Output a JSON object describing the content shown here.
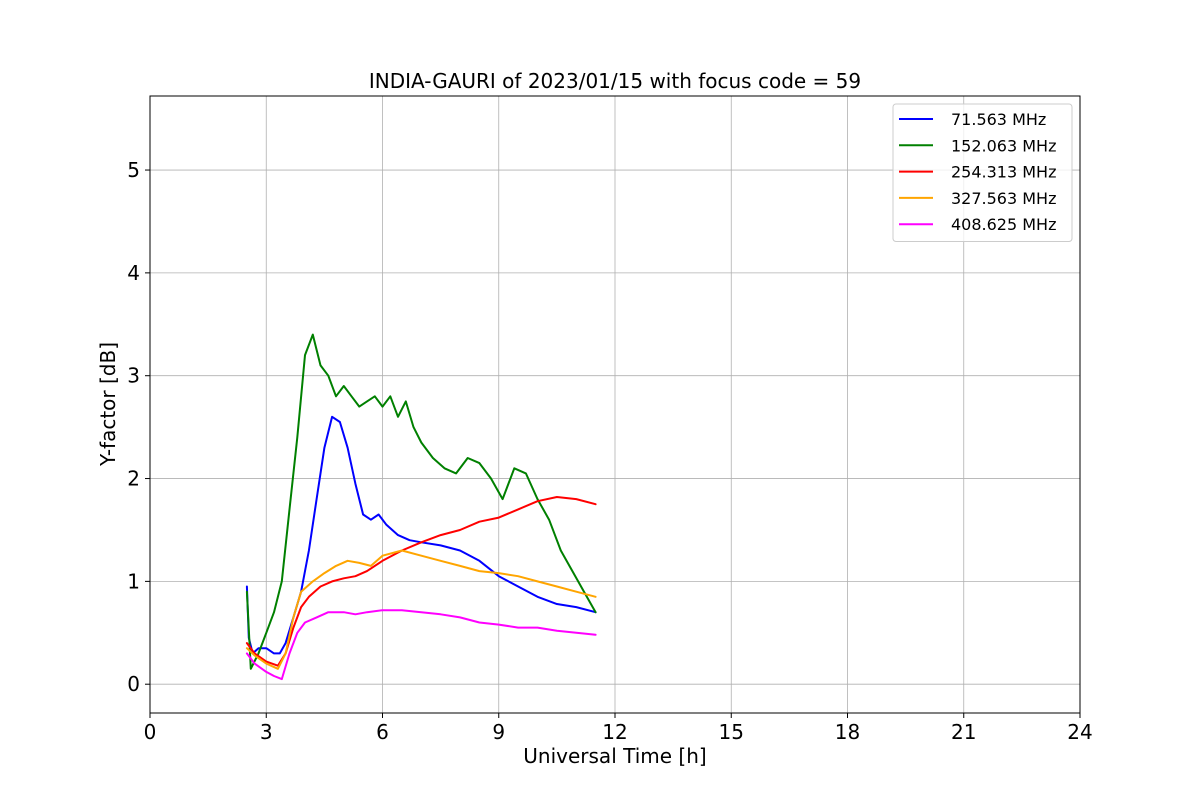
{
  "chart_data": {
    "type": "line",
    "title": "INDIA-GAURI of 2023/01/15 with focus code = 59",
    "xlabel": "Universal Time [h]",
    "ylabel": "Y-factor [dB]",
    "xlim": [
      0,
      24
    ],
    "ylim": [
      -0.28,
      5.72
    ],
    "xticks": [
      0,
      3,
      6,
      9,
      12,
      15,
      18,
      21,
      24
    ],
    "yticks": [
      0,
      1,
      2,
      3,
      4,
      5
    ],
    "grid": true,
    "legend_position": "top-right",
    "series": [
      {
        "name": " 71.563 MHz",
        "color": "#0000ff",
        "x": [
          2.5,
          2.55,
          2.65,
          2.8,
          3.0,
          3.2,
          3.35,
          3.5,
          3.7,
          3.9,
          4.1,
          4.3,
          4.5,
          4.7,
          4.9,
          5.1,
          5.3,
          5.5,
          5.7,
          5.9,
          6.1,
          6.4,
          6.7,
          7.0,
          7.5,
          8.0,
          8.5,
          9.0,
          9.5,
          10.0,
          10.5,
          11.0,
          11.5
        ],
        "y": [
          0.95,
          0.45,
          0.3,
          0.35,
          0.35,
          0.3,
          0.3,
          0.4,
          0.65,
          0.9,
          1.3,
          1.8,
          2.3,
          2.6,
          2.55,
          2.3,
          1.95,
          1.65,
          1.6,
          1.65,
          1.55,
          1.45,
          1.4,
          1.38,
          1.35,
          1.3,
          1.2,
          1.05,
          0.95,
          0.85,
          0.78,
          0.75,
          0.7
        ]
      },
      {
        "name": "152.063 MHz",
        "color": "#008000",
        "x": [
          2.5,
          2.6,
          2.8,
          3.0,
          3.2,
          3.4,
          3.6,
          3.8,
          4.0,
          4.2,
          4.4,
          4.6,
          4.8,
          5.0,
          5.2,
          5.4,
          5.6,
          5.8,
          6.0,
          6.2,
          6.4,
          6.6,
          6.8,
          7.0,
          7.3,
          7.6,
          7.9,
          8.2,
          8.5,
          8.8,
          9.1,
          9.4,
          9.7,
          10.0,
          10.3,
          10.6,
          10.9,
          11.2,
          11.5
        ],
        "y": [
          0.9,
          0.15,
          0.3,
          0.5,
          0.7,
          1.0,
          1.7,
          2.4,
          3.2,
          3.4,
          3.1,
          3.0,
          2.8,
          2.9,
          2.8,
          2.7,
          2.75,
          2.8,
          2.7,
          2.8,
          2.6,
          2.75,
          2.5,
          2.35,
          2.2,
          2.1,
          2.05,
          2.2,
          2.15,
          2.0,
          1.8,
          2.1,
          2.05,
          1.8,
          1.6,
          1.3,
          1.1,
          0.9,
          0.7
        ]
      },
      {
        "name": "254.313 MHz",
        "color": "#ff0000",
        "x": [
          2.5,
          2.7,
          3.0,
          3.3,
          3.5,
          3.7,
          3.9,
          4.1,
          4.4,
          4.7,
          5.0,
          5.3,
          5.6,
          6.0,
          6.5,
          7.0,
          7.5,
          8.0,
          8.5,
          9.0,
          9.5,
          10.0,
          10.5,
          11.0,
          11.5
        ],
        "y": [
          0.4,
          0.3,
          0.22,
          0.18,
          0.3,
          0.55,
          0.75,
          0.85,
          0.95,
          1.0,
          1.03,
          1.05,
          1.1,
          1.2,
          1.3,
          1.38,
          1.45,
          1.5,
          1.58,
          1.62,
          1.7,
          1.78,
          1.82,
          1.8,
          1.75
        ]
      },
      {
        "name": "327.563 MHz",
        "color": "#ffa500",
        "x": [
          2.5,
          2.7,
          3.0,
          3.3,
          3.5,
          3.7,
          3.9,
          4.2,
          4.5,
          4.8,
          5.1,
          5.4,
          5.7,
          6.0,
          6.5,
          7.0,
          7.5,
          8.0,
          8.5,
          9.0,
          9.5,
          10.0,
          10.5,
          11.0,
          11.5
        ],
        "y": [
          0.35,
          0.28,
          0.2,
          0.15,
          0.3,
          0.65,
          0.9,
          1.0,
          1.08,
          1.15,
          1.2,
          1.18,
          1.15,
          1.25,
          1.3,
          1.25,
          1.2,
          1.15,
          1.1,
          1.08,
          1.05,
          1.0,
          0.95,
          0.9,
          0.85
        ]
      },
      {
        "name": "408.625 MHz",
        "color": "#ff00ff",
        "x": [
          2.5,
          2.7,
          3.0,
          3.2,
          3.4,
          3.6,
          3.8,
          4.0,
          4.3,
          4.6,
          5.0,
          5.3,
          5.6,
          6.0,
          6.5,
          7.0,
          7.5,
          8.0,
          8.5,
          9.0,
          9.5,
          10.0,
          10.5,
          11.0,
          11.5
        ],
        "y": [
          0.3,
          0.2,
          0.12,
          0.08,
          0.05,
          0.3,
          0.5,
          0.6,
          0.65,
          0.7,
          0.7,
          0.68,
          0.7,
          0.72,
          0.72,
          0.7,
          0.68,
          0.65,
          0.6,
          0.58,
          0.55,
          0.55,
          0.52,
          0.5,
          0.48
        ]
      }
    ]
  }
}
